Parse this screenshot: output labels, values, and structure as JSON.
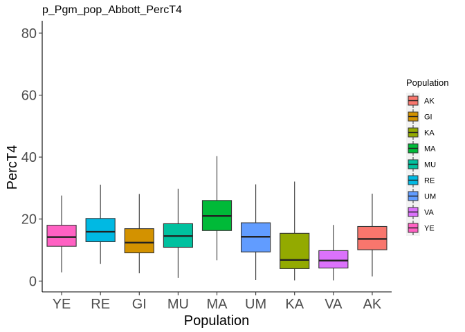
{
  "chart_data": {
    "type": "boxplot",
    "title": "p_Pgm_pop_Abbott_PercT4",
    "xlabel": "Population",
    "ylabel": "PercT4",
    "ylim": [
      -3.5,
      84
    ],
    "yticks": [
      0,
      20,
      40,
      60,
      80
    ],
    "grid": false,
    "legend": {
      "title": "Population",
      "placement": "right",
      "entries": [
        "AK",
        "GI",
        "KA",
        "MA",
        "MU",
        "RE",
        "UM",
        "VA",
        "YE"
      ]
    },
    "colors": {
      "AK": "#F8766D",
      "GI": "#D39200",
      "KA": "#93AA00",
      "MA": "#00BA38",
      "MU": "#00C19F",
      "RE": "#00B9E3",
      "UM": "#619CFF",
      "VA": "#DB72FB",
      "YE": "#FF61C3"
    },
    "categories": [
      "YE",
      "RE",
      "GI",
      "MU",
      "MA",
      "UM",
      "KA",
      "VA",
      "AK"
    ],
    "boxes": [
      {
        "name": "YE",
        "whisker_low": 2.8,
        "q1": 11.2,
        "median": 14.2,
        "q3": 18.0,
        "whisker_high": 27.6
      },
      {
        "name": "RE",
        "whisker_low": 5.5,
        "q1": 12.7,
        "median": 15.9,
        "q3": 20.2,
        "whisker_high": 31.1
      },
      {
        "name": "GI",
        "whisker_low": 2.5,
        "q1": 9.1,
        "median": 12.4,
        "q3": 16.9,
        "whisker_high": 28.1
      },
      {
        "name": "MU",
        "whisker_low": 1.0,
        "q1": 10.9,
        "median": 14.5,
        "q3": 18.5,
        "whisker_high": 29.8
      },
      {
        "name": "MA",
        "whisker_low": 6.7,
        "q1": 16.3,
        "median": 21.0,
        "q3": 26.0,
        "whisker_high": 40.3
      },
      {
        "name": "UM",
        "whisker_low": 0.3,
        "q1": 9.4,
        "median": 14.3,
        "q3": 18.8,
        "whisker_high": 31.2
      },
      {
        "name": "KA",
        "whisker_low": 0.2,
        "q1": 4.0,
        "median": 6.8,
        "q3": 15.4,
        "whisker_high": 32.1
      },
      {
        "name": "VA",
        "whisker_low": 0.2,
        "q1": 4.2,
        "median": 6.6,
        "q3": 9.8,
        "whisker_high": 18.1
      },
      {
        "name": "AK",
        "whisker_low": 1.5,
        "q1": 10.1,
        "median": 13.6,
        "q3": 17.6,
        "whisker_high": 28.2
      }
    ]
  }
}
